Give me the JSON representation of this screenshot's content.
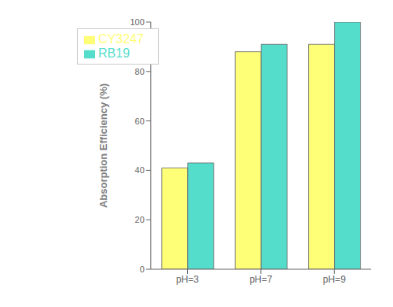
{
  "chart_data": {
    "type": "bar",
    "categories": [
      "pH=3",
      "pH=7",
      "pH=9"
    ],
    "series": [
      {
        "name": "CY3247",
        "color": "#FFFF77",
        "values": [
          41,
          88,
          91
        ]
      },
      {
        "name": "RB19",
        "color": "#55DDCC",
        "values": [
          43,
          91,
          100
        ]
      }
    ],
    "ylabel": "Absorption Efficiency (%)",
    "ylim": [
      0,
      100
    ],
    "yticks": [
      0,
      20,
      40,
      60,
      80,
      100
    ],
    "grid": false,
    "legend": "upper left"
  }
}
